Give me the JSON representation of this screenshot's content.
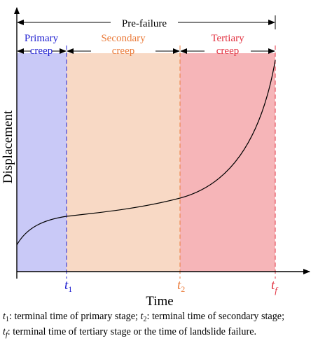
{
  "figure": {
    "top_label": "Pre-failure",
    "y_axis_label": "Displacement",
    "x_axis_label": "Time",
    "stages": [
      {
        "line1": "Primary",
        "line2": "creep",
        "color": "#1f1fd0",
        "fill": "#c9c9f7"
      },
      {
        "line1": "Secondary",
        "line2": "creep",
        "color": "#ea7b3a",
        "fill": "#f8d9c5"
      },
      {
        "line1": "Tertiary",
        "line2": "creep",
        "color": "#e23241",
        "fill": "#f6b5b8"
      }
    ],
    "ticks": [
      {
        "base": "t",
        "sub": "1",
        "color": "#1f1fd0"
      },
      {
        "base": "t",
        "sub": "2",
        "color": "#ea7b3a"
      },
      {
        "base": "t",
        "sub": "f",
        "color": "#e23241"
      }
    ]
  },
  "caption": {
    "t1": "t",
    "t1_sub": "1",
    "line1_a": ": terminal time of primary stage; ",
    "t2": "t",
    "t2_sub": "2",
    "line1_b": ": terminal time of secondary stage;",
    "tf": "t",
    "tf_sub": "f",
    "line2": ": terminal time of tertiary stage or the time of landslide failure."
  }
}
